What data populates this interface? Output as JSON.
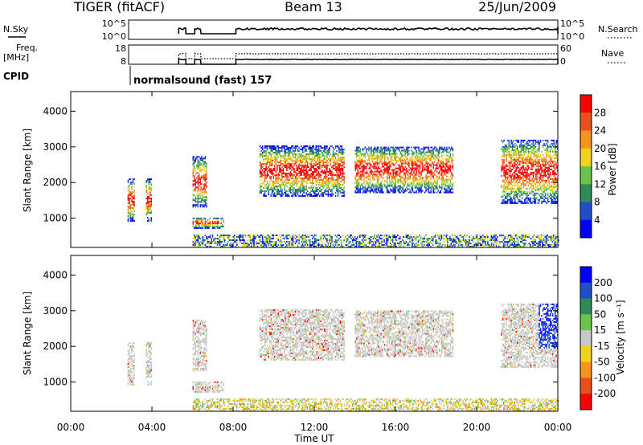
{
  "header": {
    "radar": "TIGER (fitACF)",
    "beam": "Beam 13",
    "date": "25/Jun/2009"
  },
  "nsky_panel": {
    "label": "N.Sky",
    "left_ticks": [
      "10^5",
      "10^0"
    ],
    "right_ticks": [
      "10^5",
      "10^0"
    ],
    "right_label": "N.Search"
  },
  "freq_panel": {
    "label_line1": "Freq.",
    "label_line2": "[MHz]",
    "left_ticks": [
      "18",
      "8"
    ],
    "right_ticks": [
      "60",
      "0"
    ],
    "right_label": "Nave"
  },
  "cpid": {
    "label": "CPID",
    "program": "normalsound (fast) 157"
  },
  "chart_data": [
    {
      "type": "heatmap",
      "name": "power",
      "ylabel": "Slant Range [km]",
      "yticks": [
        "1000",
        "2000",
        "3000",
        "4000"
      ],
      "ylim": [
        180,
        4550
      ],
      "colorbar": {
        "label": "Power [dB]",
        "ticks": [
          "4",
          "8",
          "12",
          "16",
          "20",
          "24",
          "28"
        ],
        "colors": [
          "#0000ff",
          "#1e4fc8",
          "#2e8b57",
          "#6cc24a",
          "#f2d21b",
          "#f7931e",
          "#e8501c",
          "#ff0000"
        ]
      },
      "echo_regions": [
        {
          "t0": 2.8,
          "t1": 3.15,
          "r0": 900,
          "r1": 2100
        },
        {
          "t0": 3.7,
          "t1": 4.0,
          "r0": 900,
          "r1": 2100
        },
        {
          "t0": 6.0,
          "t1": 6.7,
          "r0": 1300,
          "r1": 2700
        },
        {
          "t0": 6.0,
          "t1": 7.5,
          "r0": 700,
          "r1": 1000
        },
        {
          "t0": 9.3,
          "t1": 13.5,
          "r0": 1600,
          "r1": 3000
        },
        {
          "t0": 14.0,
          "t1": 18.8,
          "r0": 1700,
          "r1": 3000
        },
        {
          "t0": 21.2,
          "t1": 24.0,
          "r0": 1400,
          "r1": 3200
        },
        {
          "t0": 6.0,
          "t1": 24.0,
          "r0": 180,
          "r1": 500
        }
      ]
    },
    {
      "type": "heatmap",
      "name": "velocity",
      "ylabel": "Slant Range [km]",
      "yticks": [
        "1000",
        "2000",
        "3000",
        "4000"
      ],
      "ylim": [
        180,
        4550
      ],
      "xticks": [
        "00:00",
        "04:00",
        "08:00",
        "12:00",
        "16:00",
        "20:00",
        "00:00"
      ],
      "xlabel": "Time UT",
      "xlim": [
        0,
        24
      ],
      "colorbar": {
        "label": "Velocity [m s⁻¹]",
        "ticks": [
          "200",
          "100",
          "50",
          "15",
          "-15",
          "-50",
          "-100",
          "-200"
        ],
        "colors": [
          "#0000ff",
          "#1e4fc8",
          "#2e8b57",
          "#6cc24a",
          "#c8c8c8",
          "#f2d21b",
          "#f7931e",
          "#e8501c",
          "#ff0000"
        ]
      }
    }
  ]
}
